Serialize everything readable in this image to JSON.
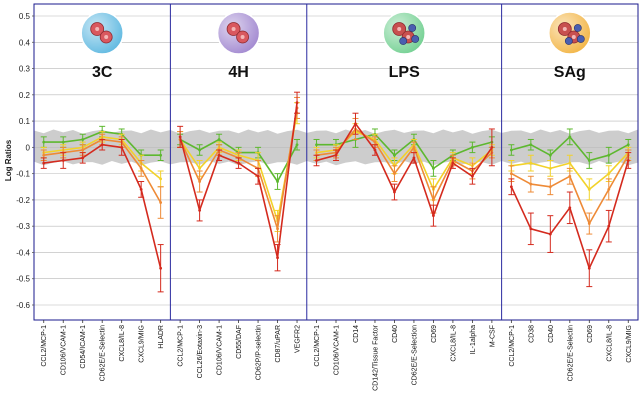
{
  "chart_data": {
    "type": "line",
    "ylabel": "Log Ratios",
    "ylim": [
      -0.6,
      0.5
    ],
    "yticks": [
      0.5,
      0.4,
      0.3,
      0.2,
      0.1,
      0,
      -0.1,
      -0.2,
      -0.3,
      -0.4,
      -0.5,
      -0.6
    ],
    "ytick_labels": [
      "0.5",
      "0.4",
      "0.3",
      "0.2",
      "0.1",
      "0",
      "-0.1",
      "-0.2",
      "-0.3",
      "-0.4",
      "-0.5",
      "-0.6"
    ],
    "grid": "horizontal",
    "band": {
      "lower": -0.06,
      "upper": 0.06,
      "color": "#c8c8c8"
    },
    "panels": [
      {
        "name": "3C",
        "icon": "cell-cluster-red-icon",
        "icon_color": "#5bb7e0",
        "categories": [
          "CCL2/MCP-1",
          "CD106/VCAM-1",
          "CD54/ICAM-1",
          "CD62E/E-Selectin",
          "CXCL8/IL-8",
          "CXCL9/MIG",
          "HLADR"
        ]
      },
      {
        "name": "4H",
        "icon": "cell-cluster-violet-icon",
        "icon_color": "#9f85cf",
        "categories": [
          "CCL2/MCP-1",
          "CCL26/Eotaxin-3",
          "CD106/VCAM-1",
          "CD55/DAF",
          "CD62P/P-selectin",
          "CD87/uPAR",
          "VEGFR2"
        ]
      },
      {
        "name": "LPS",
        "icon": "cell-cluster-green-icon",
        "icon_color": "#6fcf8f",
        "categories": [
          "CCL2/MCP-1",
          "CD106/VCAM-1",
          "CD14",
          "CD142/Tissue Factor",
          "CD40",
          "CD62E/E-Selection",
          "CD69",
          "CXCL8/IL-8",
          "IL-1alpha",
          "M-CSF"
        ]
      },
      {
        "name": "SAg",
        "icon": "cell-cluster-orange-icon",
        "icon_color": "#f2b340",
        "categories": [
          "CCL2/MCP-1",
          "CD38",
          "CD40",
          "CD62E/E-Selectin",
          "CD69",
          "CXCL8/IL-8",
          "CXCL9/MIG"
        ]
      }
    ],
    "series": [
      {
        "name": "green",
        "color": "#5db82f",
        "values": [
          0.02,
          0.02,
          0.03,
          0.06,
          0.05,
          -0.03,
          -0.03,
          0.03,
          -0.01,
          0.03,
          -0.02,
          -0.02,
          -0.13,
          0.01,
          0.01,
          0.01,
          0.03,
          0.05,
          -0.03,
          0.03,
          -0.08,
          -0.03,
          0.0,
          0.02,
          -0.01,
          0.01,
          -0.03,
          0.04,
          -0.05,
          -0.03,
          0.01
        ],
        "errors": [
          0.02,
          0.02,
          0.02,
          0.02,
          0.02,
          0.02,
          0.02,
          0.02,
          0.02,
          0.02,
          0.02,
          0.02,
          0.03,
          0.02,
          0.02,
          0.02,
          0.03,
          0.02,
          0.02,
          0.02,
          0.03,
          0.02,
          0.02,
          0.02,
          0.02,
          0.02,
          0.02,
          0.03,
          0.03,
          0.03,
          0.02
        ]
      },
      {
        "name": "yellow",
        "color": "#f2d22a",
        "values": [
          -0.02,
          -0.01,
          0.0,
          0.04,
          0.03,
          -0.06,
          -0.12,
          0.03,
          -0.08,
          0.0,
          -0.03,
          -0.05,
          -0.28,
          0.13,
          -0.02,
          -0.01,
          0.06,
          0.03,
          -0.07,
          0.01,
          -0.16,
          -0.04,
          -0.07,
          -0.01,
          -0.07,
          -0.06,
          -0.08,
          -0.06,
          -0.16,
          -0.1,
          -0.02
        ],
        "errors": [
          0.02,
          0.02,
          0.02,
          0.02,
          0.02,
          0.03,
          0.03,
          0.03,
          0.03,
          0.02,
          0.02,
          0.03,
          0.04,
          0.04,
          0.02,
          0.02,
          0.03,
          0.02,
          0.03,
          0.02,
          0.04,
          0.02,
          0.03,
          0.02,
          0.02,
          0.03,
          0.03,
          0.03,
          0.04,
          0.03,
          0.02
        ]
      },
      {
        "name": "orange",
        "color": "#ee8a36",
        "values": [
          -0.03,
          -0.02,
          -0.01,
          0.03,
          0.02,
          -0.08,
          -0.21,
          0.03,
          -0.13,
          -0.01,
          -0.04,
          -0.08,
          -0.31,
          0.15,
          -0.03,
          -0.02,
          0.07,
          0.02,
          -0.1,
          0.0,
          -0.2,
          -0.05,
          -0.09,
          -0.02,
          -0.1,
          -0.14,
          -0.15,
          -0.11,
          -0.29,
          -0.16,
          -0.03
        ],
        "errors": [
          0.02,
          0.02,
          0.02,
          0.02,
          0.02,
          0.03,
          0.06,
          0.03,
          0.04,
          0.02,
          0.02,
          0.03,
          0.05,
          0.04,
          0.02,
          0.02,
          0.04,
          0.02,
          0.03,
          0.02,
          0.05,
          0.02,
          0.03,
          0.02,
          0.03,
          0.03,
          0.03,
          0.03,
          0.04,
          0.04,
          0.02
        ]
      },
      {
        "name": "red",
        "color": "#d42a1e",
        "values": [
          -0.06,
          -0.05,
          -0.04,
          0.01,
          0.0,
          -0.16,
          -0.46,
          0.04,
          -0.24,
          -0.03,
          -0.06,
          -0.11,
          -0.42,
          0.17,
          -0.05,
          -0.03,
          0.09,
          -0.01,
          -0.17,
          -0.04,
          -0.26,
          -0.06,
          -0.11,
          0.0,
          -0.15,
          -0.31,
          -0.33,
          -0.23,
          -0.46,
          -0.3,
          -0.05
        ],
        "errors": [
          0.02,
          0.03,
          0.02,
          0.02,
          0.03,
          0.03,
          0.09,
          0.04,
          0.04,
          0.02,
          0.02,
          0.03,
          0.05,
          0.04,
          0.02,
          0.02,
          0.04,
          0.02,
          0.03,
          0.02,
          0.04,
          0.02,
          0.03,
          0.07,
          0.03,
          0.06,
          0.07,
          0.06,
          0.07,
          0.06,
          0.03
        ]
      }
    ]
  }
}
